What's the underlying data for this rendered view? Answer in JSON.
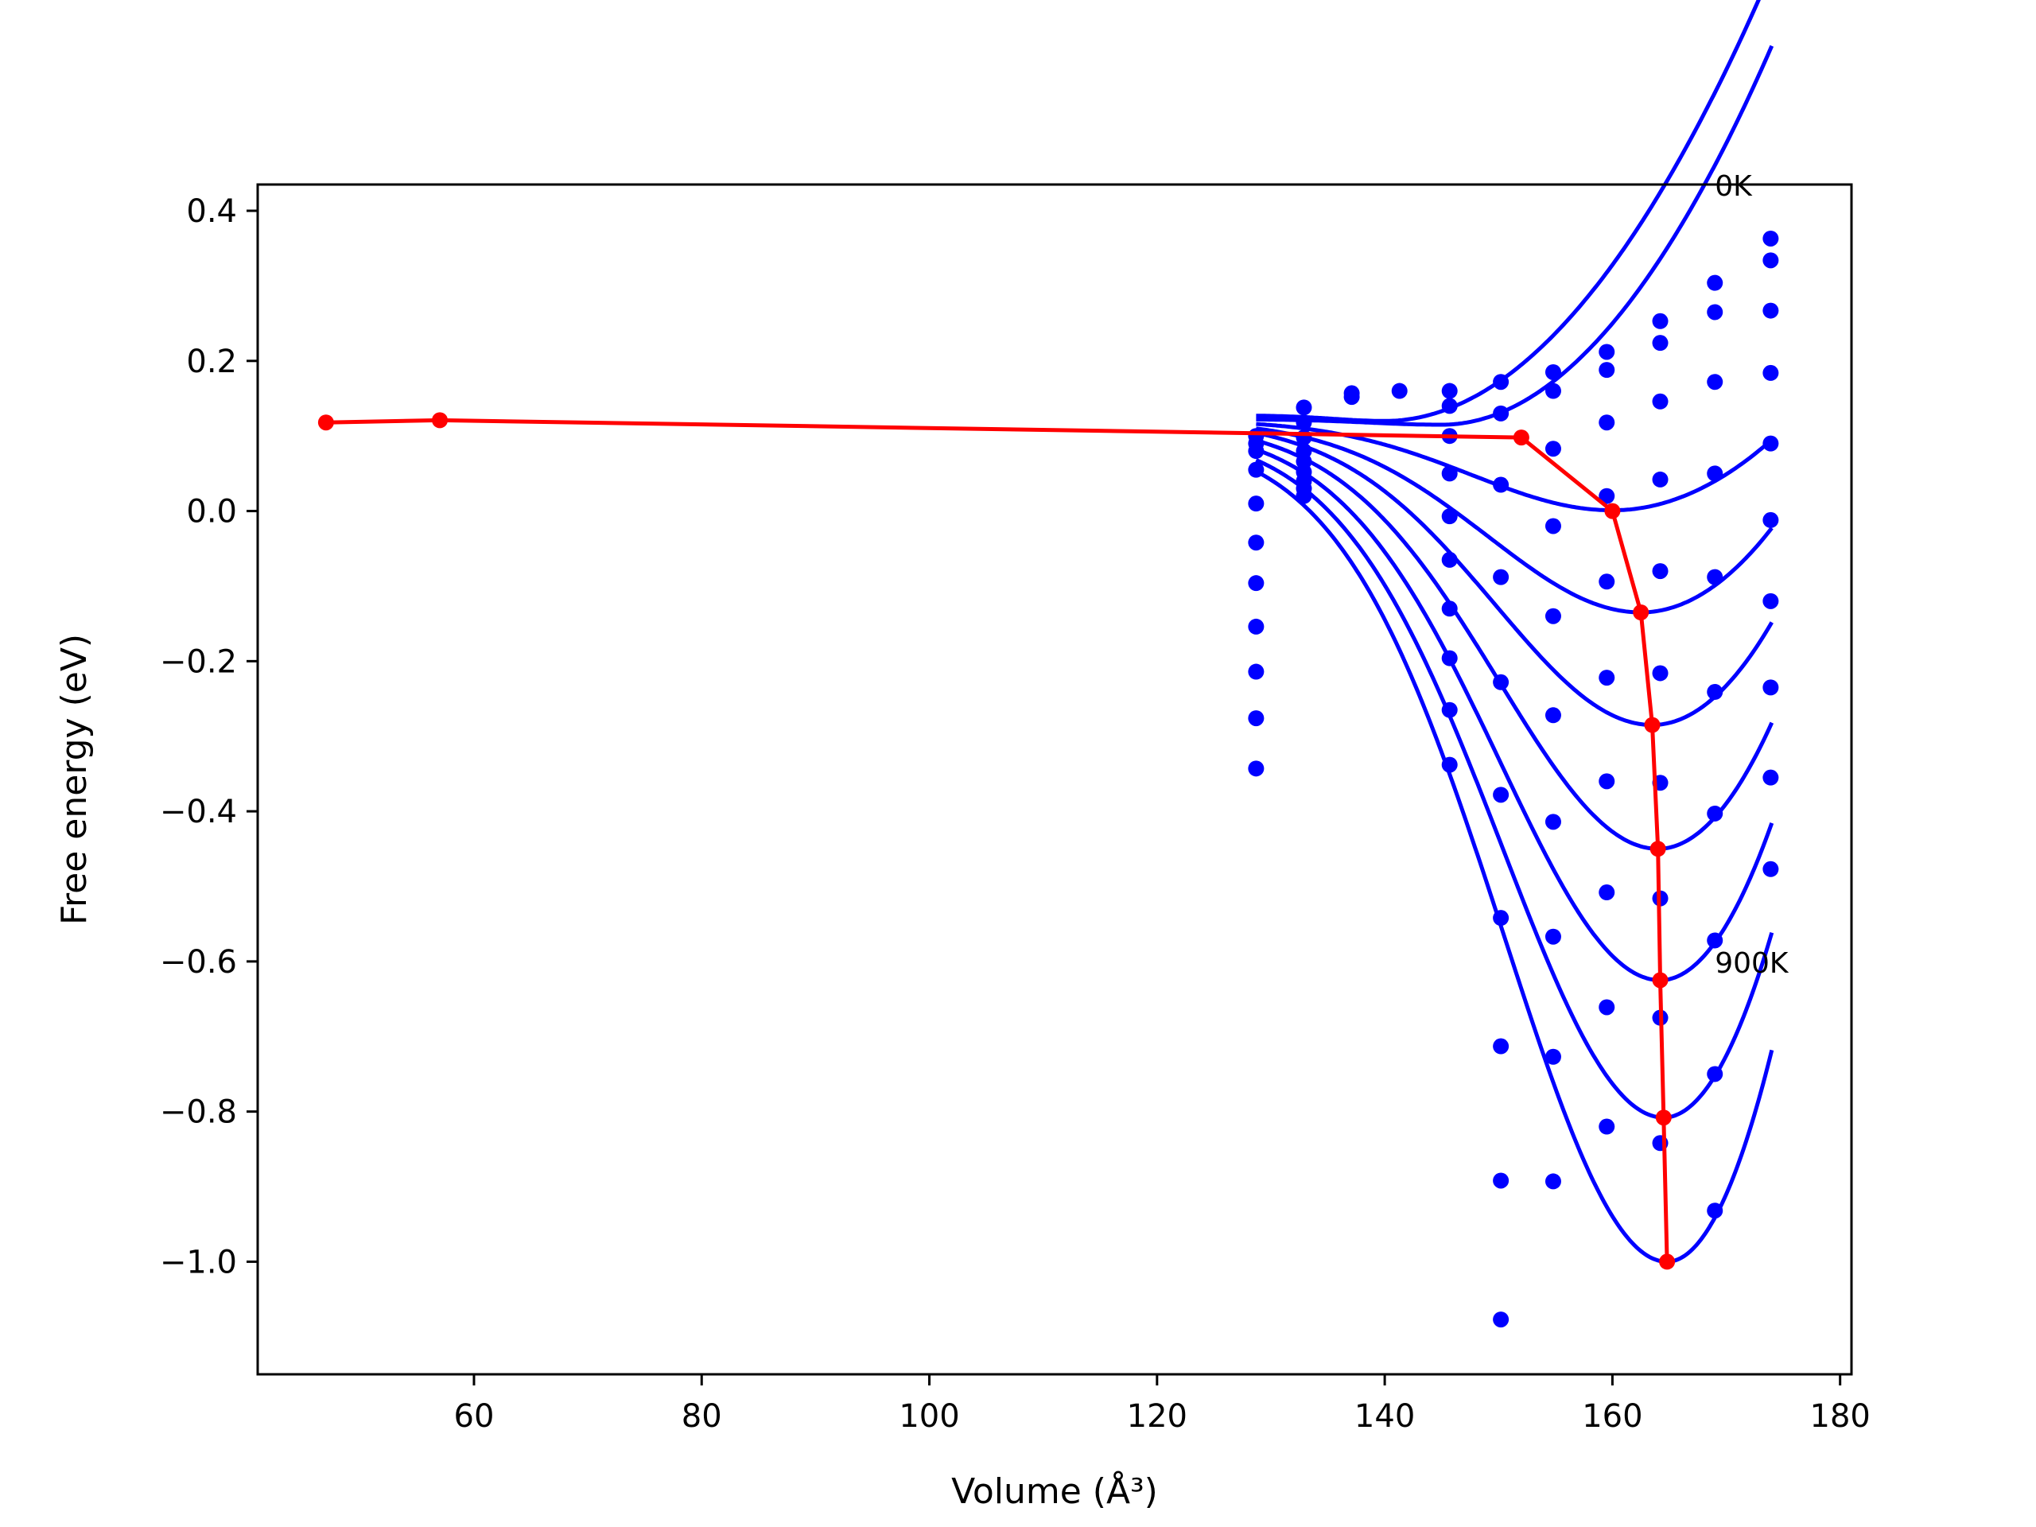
{
  "chart_data": {
    "type": "line",
    "title": "",
    "xlabel": "Volume (Å³)",
    "ylabel": "Free energy (eV)",
    "xlim": [
      41,
      181
    ],
    "ylim": [
      -1.15,
      0.435
    ],
    "xticks": [
      60,
      80,
      100,
      120,
      140,
      160,
      180
    ],
    "yticks": [
      0.4,
      0.2,
      0.0,
      -0.2,
      -0.4,
      -0.6,
      -0.8,
      -1.0
    ],
    "xtick_labels": [
      "60",
      "80",
      "100",
      "120",
      "140",
      "160",
      "180"
    ],
    "ytick_labels": [
      "0.4",
      "0.2",
      "0.0",
      "−0.2",
      "−0.4",
      "−0.6",
      "−0.8",
      "−1.0"
    ],
    "grid": false,
    "legend": "none",
    "colors": {
      "fit_curves": "#0000ff",
      "data_points": "#0000ff",
      "minimum_path": "#ff0000",
      "axes": "#000000"
    },
    "annotations": [
      {
        "text": "0K",
        "x": 169.0,
        "y": 0.42
      },
      {
        "text": "900K",
        "x": 169.0,
        "y": -0.615
      }
    ],
    "fit_curves": {
      "x_range": [
        128.7,
        174.0
      ],
      "curves": [
        {
          "min_x": 140.0,
          "min_y": 0.12,
          "curv": 0.00052,
          "left_y": 0.127
        },
        {
          "min_x": 145.0,
          "min_y": 0.115,
          "curv": 0.0006,
          "left_y": 0.122
        },
        {
          "min_x": 160.0,
          "min_y": 0.001,
          "curv": 0.00048,
          "left_y": 0.116
        },
        {
          "min_x": 162.5,
          "min_y": -0.135,
          "curv": 0.00085,
          "left_y": 0.11
        },
        {
          "min_x": 163.5,
          "min_y": -0.285,
          "curv": 0.00124,
          "left_y": 0.104
        },
        {
          "min_x": 164.0,
          "min_y": -0.45,
          "curv": 0.00168,
          "left_y": 0.094
        },
        {
          "min_x": 164.2,
          "min_y": -0.625,
          "curv": 0.00218,
          "left_y": 0.082
        },
        {
          "min_x": 164.5,
          "min_y": -0.808,
          "curv": 0.00273,
          "left_y": 0.068
        },
        {
          "min_x": 164.8,
          "min_y": -1.0,
          "curv": 0.00333,
          "left_y": 0.053
        }
      ]
    },
    "scatter_points": [
      [
        128.7,
        0.1
      ],
      [
        128.7,
        0.09
      ],
      [
        128.7,
        0.08
      ],
      [
        128.7,
        0.055
      ],
      [
        128.7,
        0.01
      ],
      [
        128.7,
        -0.042
      ],
      [
        128.7,
        -0.096
      ],
      [
        128.7,
        -0.154
      ],
      [
        128.7,
        -0.214
      ],
      [
        128.7,
        -0.276
      ],
      [
        128.7,
        -0.343
      ],
      [
        132.9,
        0.138
      ],
      [
        132.9,
        0.118
      ],
      [
        132.9,
        0.098
      ],
      [
        132.9,
        0.08
      ],
      [
        132.9,
        0.066
      ],
      [
        132.9,
        0.052
      ],
      [
        132.9,
        0.04
      ],
      [
        132.9,
        0.03
      ],
      [
        132.9,
        0.02
      ],
      [
        137.1,
        0.157
      ],
      [
        137.1,
        0.152
      ],
      [
        141.3,
        0.16
      ],
      [
        145.7,
        0.16
      ],
      [
        145.7,
        0.14
      ],
      [
        145.7,
        0.1
      ],
      [
        145.7,
        0.05
      ],
      [
        145.7,
        -0.007
      ],
      [
        145.7,
        -0.065
      ],
      [
        145.7,
        -0.13
      ],
      [
        145.7,
        -0.196
      ],
      [
        145.7,
        -0.265
      ],
      [
        145.7,
        -0.338
      ],
      [
        150.2,
        0.172
      ],
      [
        150.2,
        0.13
      ],
      [
        150.2,
        0.035
      ],
      [
        150.2,
        -0.088
      ],
      [
        150.2,
        -0.228
      ],
      [
        150.2,
        -0.378
      ],
      [
        150.2,
        -0.542
      ],
      [
        150.2,
        -0.713
      ],
      [
        150.2,
        -0.892
      ],
      [
        150.2,
        -1.077
      ],
      [
        154.8,
        0.185
      ],
      [
        154.8,
        0.16
      ],
      [
        154.8,
        0.083
      ],
      [
        154.8,
        -0.02
      ],
      [
        154.8,
        -0.14
      ],
      [
        154.8,
        -0.272
      ],
      [
        154.8,
        -0.414
      ],
      [
        154.8,
        -0.567
      ],
      [
        154.8,
        -0.727
      ],
      [
        154.8,
        -0.893
      ],
      [
        159.5,
        0.212
      ],
      [
        159.5,
        0.188
      ],
      [
        159.5,
        0.118
      ],
      [
        159.5,
        0.02
      ],
      [
        159.5,
        -0.094
      ],
      [
        159.5,
        -0.222
      ],
      [
        159.5,
        -0.36
      ],
      [
        159.5,
        -0.508
      ],
      [
        159.5,
        -0.661
      ],
      [
        159.5,
        -0.82
      ],
      [
        164.2,
        0.253
      ],
      [
        164.2,
        0.224
      ],
      [
        164.2,
        0.146
      ],
      [
        164.2,
        0.042
      ],
      [
        164.2,
        -0.08
      ],
      [
        164.2,
        -0.216
      ],
      [
        164.2,
        -0.362
      ],
      [
        164.2,
        -0.516
      ],
      [
        164.2,
        -0.675
      ],
      [
        164.2,
        -0.842
      ],
      [
        169.0,
        0.304
      ],
      [
        169.0,
        0.265
      ],
      [
        169.0,
        0.172
      ],
      [
        169.0,
        0.05
      ],
      [
        169.0,
        -0.088
      ],
      [
        169.0,
        -0.241
      ],
      [
        169.0,
        -0.403
      ],
      [
        169.0,
        -0.572
      ],
      [
        169.0,
        -0.75
      ],
      [
        169.0,
        -0.932
      ],
      [
        173.9,
        0.363
      ],
      [
        173.9,
        0.334
      ],
      [
        173.9,
        0.267
      ],
      [
        173.9,
        0.184
      ],
      [
        173.9,
        0.09
      ],
      [
        173.9,
        -0.012
      ],
      [
        173.9,
        -0.12
      ],
      [
        173.9,
        -0.235
      ],
      [
        173.9,
        -0.355
      ],
      [
        173.9,
        -0.477
      ]
    ],
    "series": [
      {
        "x": [
          47.0,
          57.0,
          152.0,
          160.0,
          162.5,
          163.5,
          164.0,
          164.2,
          164.5,
          164.8
        ],
        "y": [
          0.118,
          0.121,
          0.098,
          0.0,
          -0.135,
          -0.285,
          -0.45,
          -0.625,
          -0.808,
          -1.0
        ]
      }
    ]
  }
}
